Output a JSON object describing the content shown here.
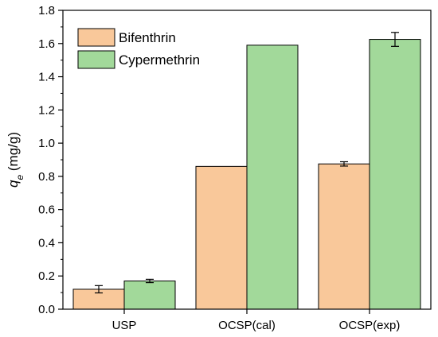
{
  "chart_data": {
    "type": "bar",
    "categories": [
      "USP",
      "OCSP(cal)",
      "OCSP(exp)"
    ],
    "series": [
      {
        "name": "Bifenthrin",
        "values": [
          0.12,
          0.86,
          0.875
        ],
        "errors": [
          0.022,
          null,
          0.013
        ],
        "color": "#F9C89A"
      },
      {
        "name": "Cypermethrin",
        "values": [
          0.17,
          1.59,
          1.625
        ],
        "errors": [
          0.01,
          null,
          0.042
        ],
        "color": "#A2D99A"
      }
    ],
    "ylabel_symbol": "q",
    "ylabel_subscript": "e",
    "ylabel_unit": " (mg/g)",
    "ylim": [
      0,
      1.8
    ],
    "yticks": [
      "0.0",
      "0.2",
      "0.4",
      "0.6",
      "0.8",
      "1.0",
      "1.2",
      "1.4",
      "1.6",
      "1.8"
    ],
    "legend_position": "top-left",
    "grid": false
  }
}
